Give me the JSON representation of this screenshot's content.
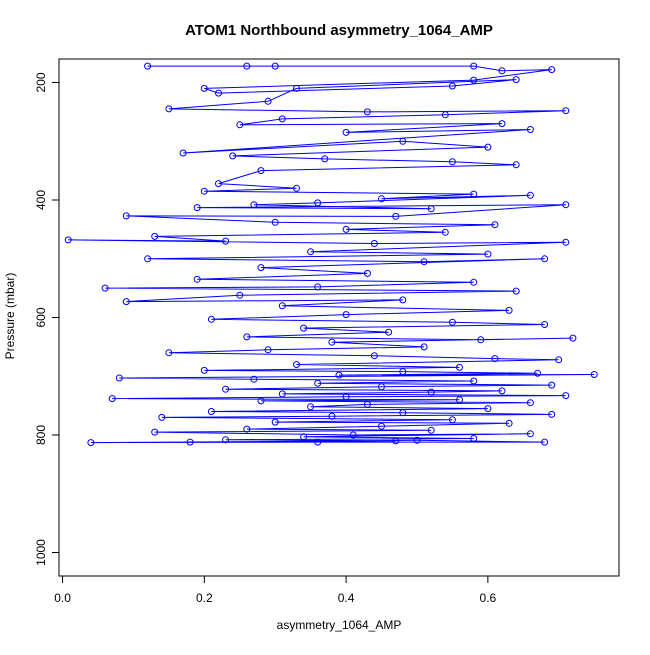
{
  "chart_data": {
    "type": "line",
    "title": "ATOM1 Northbound asymmetry_1064_AMP",
    "xlabel": "asymmetry_1064_AMP",
    "ylabel": "Pressure (mbar)",
    "xlim": [
      -0.005,
      0.785
    ],
    "ylim": [
      1040,
      160
    ],
    "y_reversed": true,
    "xticks": [
      0.0,
      0.2,
      0.4,
      0.6
    ],
    "xtick_labels": [
      "0.0",
      "0.2",
      "0.4",
      "0.6"
    ],
    "yticks": [
      200,
      400,
      600,
      800,
      1000
    ],
    "ytick_labels": [
      "200",
      "400",
      "600",
      "800",
      "1000"
    ],
    "grid": false,
    "legend": false,
    "series_color": "#0000ff",
    "marker": "open-circle",
    "series": [
      {
        "points": [
          [
            0.12,
            172
          ],
          [
            0.26,
            172
          ],
          [
            0.3,
            172
          ],
          [
            0.58,
            172
          ],
          [
            0.62,
            180
          ],
          [
            0.69,
            178
          ],
          [
            0.58,
            196
          ],
          [
            0.2,
            210
          ],
          [
            0.22,
            218
          ],
          [
            0.55,
            206
          ],
          [
            0.64,
            195
          ],
          [
            0.33,
            210
          ],
          [
            0.29,
            232
          ],
          [
            0.15,
            245
          ],
          [
            0.43,
            250
          ],
          [
            0.71,
            248
          ],
          [
            0.54,
            255
          ],
          [
            0.31,
            262
          ],
          [
            0.25,
            272
          ],
          [
            0.62,
            270
          ],
          [
            0.4,
            285
          ],
          [
            0.66,
            280
          ],
          [
            0.17,
            320
          ],
          [
            0.48,
            300
          ],
          [
            0.6,
            310
          ],
          [
            0.24,
            325
          ],
          [
            0.37,
            330
          ],
          [
            0.55,
            335
          ],
          [
            0.64,
            340
          ],
          [
            0.28,
            350
          ],
          [
            0.22,
            372
          ],
          [
            0.33,
            380
          ],
          [
            0.2,
            385
          ],
          [
            0.58,
            390
          ],
          [
            0.45,
            398
          ],
          [
            0.66,
            392
          ],
          [
            0.36,
            405
          ],
          [
            0.27,
            408
          ],
          [
            0.52,
            415
          ],
          [
            0.19,
            413
          ],
          [
            0.71,
            408
          ],
          [
            0.47,
            428
          ],
          [
            0.09,
            427
          ],
          [
            0.3,
            438
          ],
          [
            0.61,
            442
          ],
          [
            0.4,
            450
          ],
          [
            0.54,
            455
          ],
          [
            0.13,
            462
          ],
          [
            0.23,
            470
          ],
          [
            0.008,
            468
          ],
          [
            0.44,
            474
          ],
          [
            0.71,
            472
          ],
          [
            0.35,
            488
          ],
          [
            0.6,
            492
          ],
          [
            0.12,
            500
          ],
          [
            0.51,
            505
          ],
          [
            0.68,
            500
          ],
          [
            0.28,
            515
          ],
          [
            0.43,
            525
          ],
          [
            0.19,
            535
          ],
          [
            0.58,
            540
          ],
          [
            0.36,
            548
          ],
          [
            0.06,
            550
          ],
          [
            0.64,
            555
          ],
          [
            0.25,
            562
          ],
          [
            0.09,
            573
          ],
          [
            0.48,
            570
          ],
          [
            0.31,
            580
          ],
          [
            0.63,
            588
          ],
          [
            0.4,
            595
          ],
          [
            0.21,
            603
          ],
          [
            0.55,
            608
          ],
          [
            0.68,
            612
          ],
          [
            0.34,
            618
          ],
          [
            0.46,
            625
          ],
          [
            0.26,
            633
          ],
          [
            0.59,
            638
          ],
          [
            0.72,
            635
          ],
          [
            0.38,
            642
          ],
          [
            0.51,
            650
          ],
          [
            0.29,
            655
          ],
          [
            0.15,
            660
          ],
          [
            0.44,
            665
          ],
          [
            0.61,
            670
          ],
          [
            0.7,
            672
          ],
          [
            0.33,
            680
          ],
          [
            0.56,
            685
          ],
          [
            0.2,
            690
          ],
          [
            0.48,
            692
          ],
          [
            0.67,
            695
          ],
          [
            0.39,
            698
          ],
          [
            0.75,
            697
          ],
          [
            0.08,
            703
          ],
          [
            0.27,
            705
          ],
          [
            0.58,
            708
          ],
          [
            0.36,
            712
          ],
          [
            0.69,
            715
          ],
          [
            0.45,
            718
          ],
          [
            0.23,
            722
          ],
          [
            0.62,
            725
          ],
          [
            0.52,
            727
          ],
          [
            0.31,
            730
          ],
          [
            0.71,
            733
          ],
          [
            0.4,
            735
          ],
          [
            0.07,
            738
          ],
          [
            0.56,
            740
          ],
          [
            0.28,
            742
          ],
          [
            0.66,
            745
          ],
          [
            0.43,
            748
          ],
          [
            0.35,
            752
          ],
          [
            0.6,
            755
          ],
          [
            0.21,
            760
          ],
          [
            0.48,
            762
          ],
          [
            0.69,
            765
          ],
          [
            0.38,
            768
          ],
          [
            0.14,
            770
          ],
          [
            0.55,
            774
          ],
          [
            0.3,
            778
          ],
          [
            0.63,
            780
          ],
          [
            0.45,
            785
          ],
          [
            0.26,
            790
          ],
          [
            0.52,
            792
          ],
          [
            0.13,
            795
          ],
          [
            0.41,
            800
          ],
          [
            0.66,
            798
          ],
          [
            0.34,
            803
          ],
          [
            0.58,
            806
          ],
          [
            0.23,
            808
          ],
          [
            0.47,
            810
          ],
          [
            0.04,
            813
          ],
          [
            0.36,
            812
          ],
          [
            0.68,
            812
          ],
          [
            0.5,
            809
          ],
          [
            0.18,
            812
          ]
        ]
      }
    ]
  }
}
